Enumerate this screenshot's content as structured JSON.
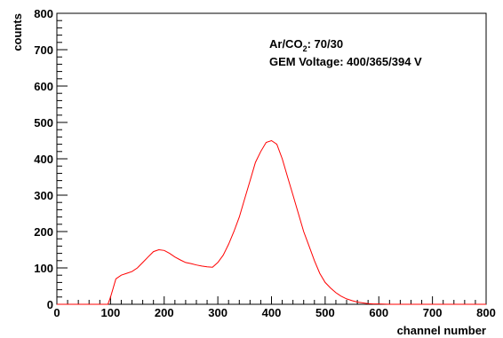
{
  "chart_data": {
    "type": "line",
    "title": "",
    "xlabel": "channel number",
    "ylabel": "counts",
    "xlim": [
      0,
      800
    ],
    "ylim": [
      0,
      800
    ],
    "x_ticks": [
      "0",
      "100",
      "200",
      "300",
      "400",
      "500",
      "600",
      "700",
      "800"
    ],
    "y_ticks": [
      "0",
      "100",
      "200",
      "300",
      "400",
      "500",
      "600",
      "700",
      "800"
    ],
    "grid": false,
    "legend": "none",
    "annotations": {
      "gas_prefix": "Ar/CO",
      "gas_subscript": "2",
      "gas_suffix": ": 70/30",
      "voltage": "GEM Voltage: 400/365/394 V"
    },
    "series": [
      {
        "color": "#ff0000",
        "x": [
          0,
          95,
          100,
          105,
          110,
          120,
          130,
          140,
          150,
          160,
          170,
          180,
          190,
          200,
          210,
          220,
          230,
          240,
          250,
          260,
          270,
          280,
          290,
          300,
          310,
          320,
          330,
          340,
          350,
          360,
          370,
          380,
          390,
          400,
          410,
          420,
          430,
          440,
          450,
          460,
          470,
          480,
          490,
          500,
          510,
          520,
          530,
          540,
          550,
          560,
          570,
          580,
          590,
          600,
          620,
          650,
          700,
          800
        ],
        "y": [
          0,
          0,
          20,
          45,
          70,
          80,
          85,
          90,
          100,
          115,
          130,
          145,
          150,
          148,
          140,
          130,
          122,
          115,
          112,
          108,
          105,
          103,
          102,
          115,
          135,
          165,
          200,
          240,
          290,
          340,
          390,
          420,
          445,
          450,
          440,
          400,
          350,
          300,
          250,
          200,
          160,
          120,
          85,
          60,
          45,
          32,
          22,
          15,
          10,
          6,
          4,
          2,
          1,
          1,
          0,
          0,
          0,
          0
        ]
      }
    ]
  }
}
